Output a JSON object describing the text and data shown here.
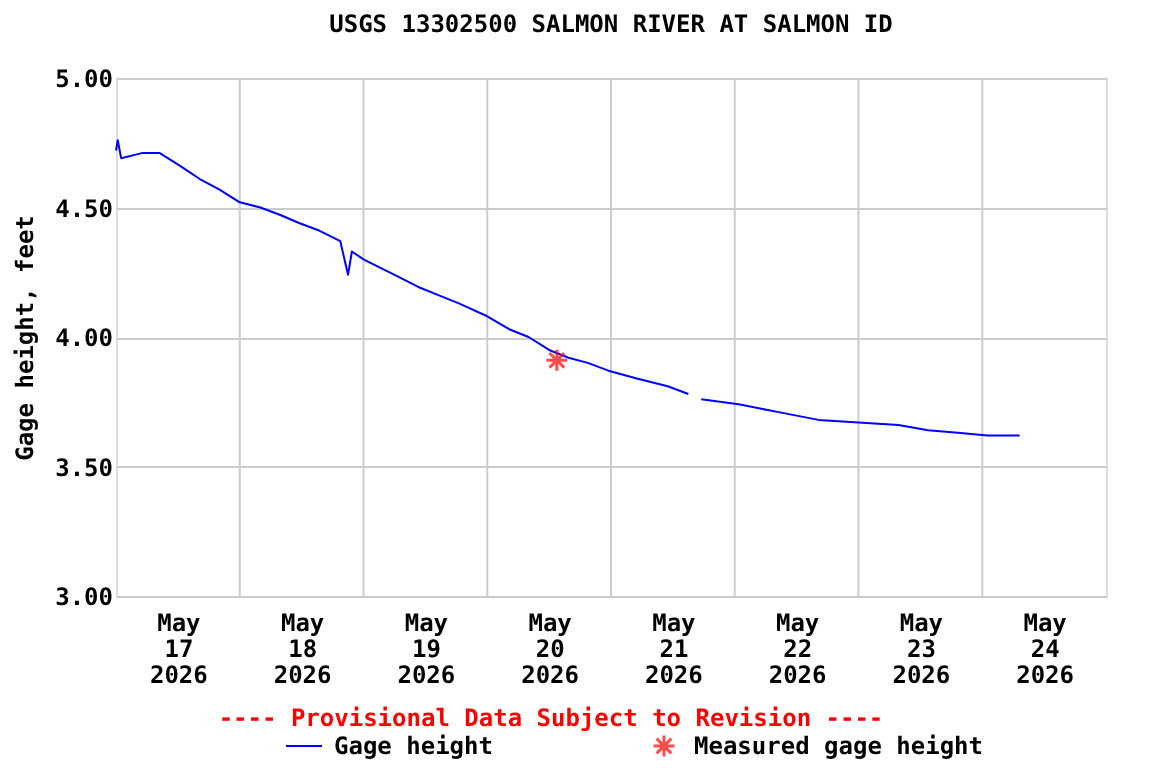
{
  "chart_data": {
    "type": "line",
    "title": "USGS 13302500 SALMON RIVER AT SALMON ID",
    "ylabel": "Gage height, feet",
    "ylim": [
      3.0,
      5.0
    ],
    "yticks": [
      {
        "value": 3.0,
        "label": "3.00"
      },
      {
        "value": 3.5,
        "label": "3.50"
      },
      {
        "value": 4.0,
        "label": "4.00"
      },
      {
        "value": 4.5,
        "label": "4.50"
      },
      {
        "value": 5.0,
        "label": "5.00"
      }
    ],
    "xlim": [
      "2026-05-17T00:00",
      "2026-05-25T00:00"
    ],
    "xticks": [
      {
        "value": "2026-05-17T12:00",
        "label": "May\n17\n2026"
      },
      {
        "value": "2026-05-18T00:00",
        "label": null
      },
      {
        "value": "2026-05-18T12:00",
        "label": "May\n18\n2026"
      },
      {
        "value": "2026-05-19T00:00",
        "label": null
      },
      {
        "value": "2026-05-19T12:00",
        "label": "May\n19\n2026"
      },
      {
        "value": "2026-05-20T00:00",
        "label": null
      },
      {
        "value": "2026-05-20T12:00",
        "label": "May\n20\n2026"
      },
      {
        "value": "2026-05-21T00:00",
        "label": null
      },
      {
        "value": "2026-05-21T12:00",
        "label": "May\n21\n2026"
      },
      {
        "value": "2026-05-22T00:00",
        "label": null
      },
      {
        "value": "2026-05-22T12:00",
        "label": "May\n22\n2026"
      },
      {
        "value": "2026-05-23T00:00",
        "label": null
      },
      {
        "value": "2026-05-23T12:00",
        "label": "May\n23\n2026"
      },
      {
        "value": "2026-05-24T00:00",
        "label": null
      },
      {
        "value": "2026-05-24T12:00",
        "label": "May\n24\n2026"
      }
    ],
    "grid": true,
    "legend": "bottom",
    "annotations": [
      "---- Provisional Data Subject to Revision ----"
    ],
    "series": [
      {
        "name": "Gage height",
        "color": "#0000ff",
        "x": [
          "2026-05-17T00:00",
          "2026-05-17T00:20",
          "2026-05-17T01:00",
          "2026-05-17T05:00",
          "2026-05-17T08:30",
          "2026-05-17T12:30",
          "2026-05-17T16:15",
          "2026-05-17T20:00",
          "2026-05-18T00:00",
          "2026-05-18T04:00",
          "2026-05-18T08:00",
          "2026-05-18T11:30",
          "2026-05-18T15:30",
          "2026-05-18T19:30",
          "2026-05-18T21:00",
          "2026-05-18T21:45",
          "2026-05-19T00:00",
          "2026-05-19T03:00",
          "2026-05-19T07:00",
          "2026-05-19T11:00",
          "2026-05-19T14:45",
          "2026-05-19T18:30",
          "2026-05-20T00:00",
          "2026-05-20T04:15",
          "2026-05-20T08:00",
          "2026-05-20T12:00",
          "2026-05-20T15:45",
          "2026-05-20T19:30",
          "2026-05-20T23:30",
          "2026-05-21T05:00",
          "2026-05-21T11:00",
          "2026-05-21T15:00",
          "2026-05-21T16:15",
          "2026-05-21T17:30",
          "2026-05-22T00:45",
          "2026-05-22T08:30",
          "2026-05-22T16:15",
          "2026-05-23T00:00",
          "2026-05-23T07:45",
          "2026-05-23T13:30",
          "2026-05-23T19:15",
          "2026-05-24T01:00",
          "2026-05-24T07:15"
        ],
        "values": [
          4.72,
          4.76,
          4.69,
          4.71,
          4.71,
          4.66,
          4.61,
          4.57,
          4.52,
          4.5,
          4.47,
          4.44,
          4.41,
          4.37,
          4.24,
          4.33,
          4.3,
          4.27,
          4.23,
          4.19,
          4.16,
          4.13,
          4.08,
          4.03,
          4.0,
          3.95,
          3.92,
          3.9,
          3.87,
          3.84,
          3.81,
          3.78,
          null,
          3.76,
          3.74,
          3.71,
          3.68,
          3.67,
          3.66,
          3.64,
          3.63,
          3.62,
          3.62
        ]
      },
      {
        "name": "Measured gage height",
        "color": "#ff0000",
        "type": "scatter",
        "marker": "cross",
        "x": [
          "2026-05-20T13:30"
        ],
        "values": [
          3.91
        ]
      }
    ]
  }
}
